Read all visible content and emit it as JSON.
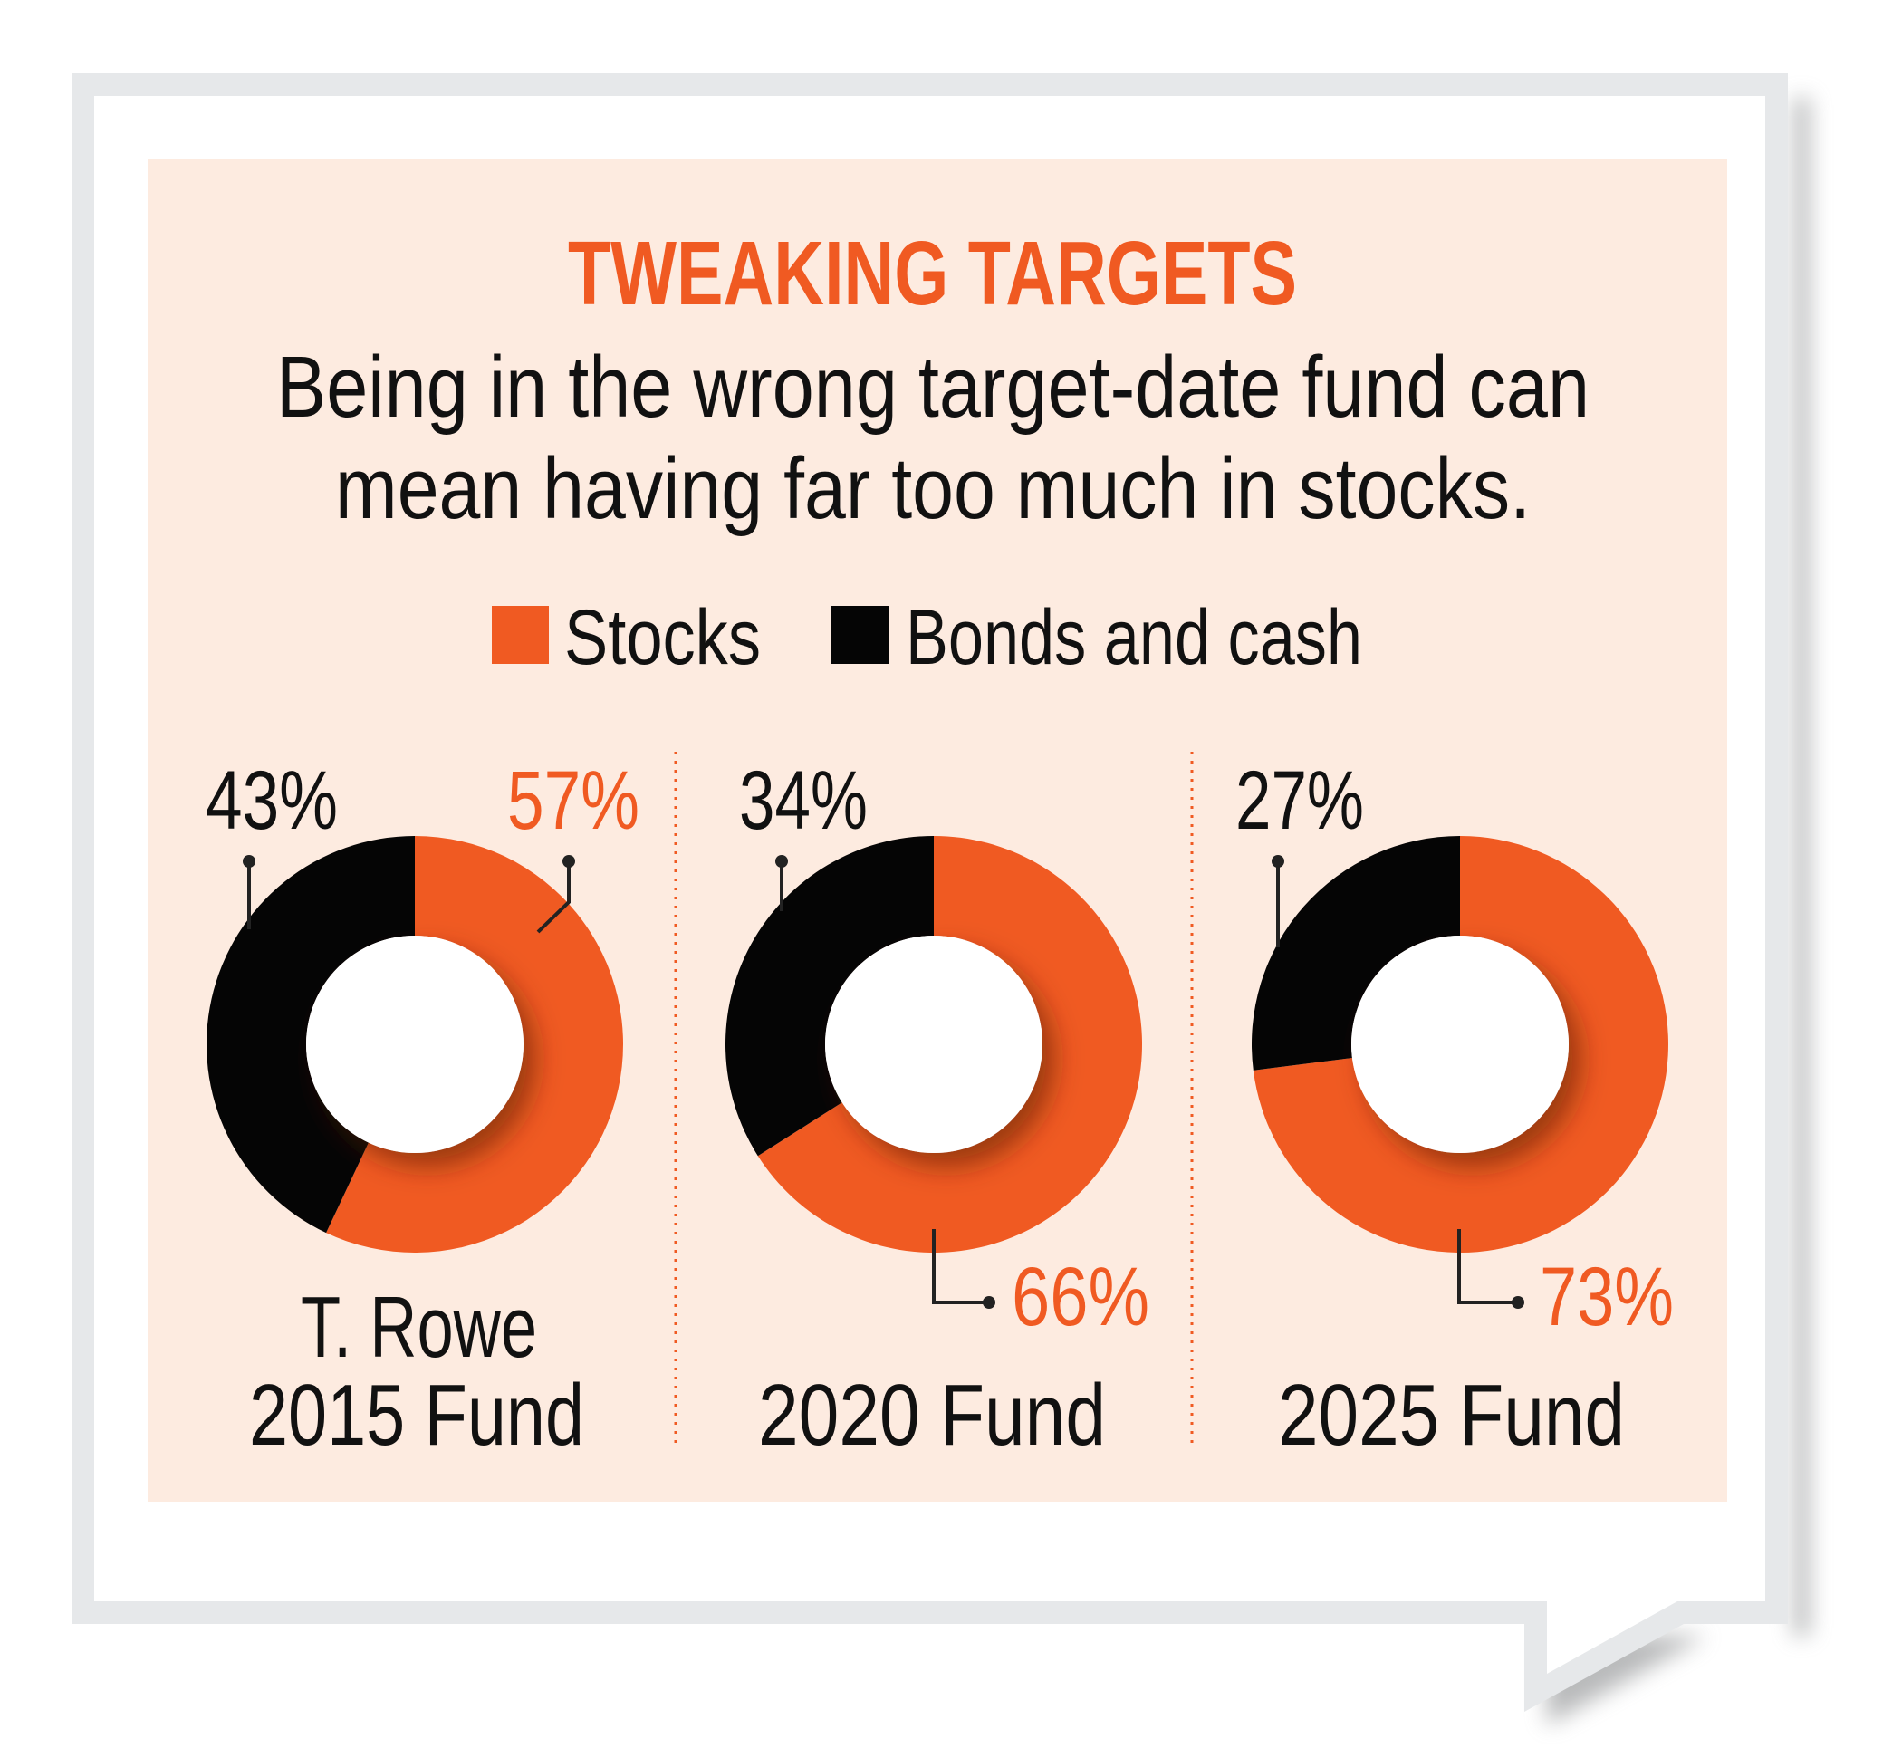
{
  "colors": {
    "stocks": "#f05a22",
    "bonds": "#050505",
    "panel": "#fdebe0",
    "frame": "#e6e8ea"
  },
  "title": "TWEAKING TARGETS",
  "subtitle": [
    "Being in the wrong target-date fund can",
    "mean having far too much in stocks."
  ],
  "chart_data": {
    "type": "pie",
    "variant": "donut",
    "title": "TWEAKING TARGETS",
    "legend": [
      "Stocks",
      "Bonds and cash"
    ],
    "legend_placement": "top",
    "charts": [
      {
        "name_lines": [
          "T. Rowe",
          "2015 Fund"
        ],
        "stocks": 57,
        "bonds": 43,
        "stocks_label": "57%",
        "bonds_label": "43%"
      },
      {
        "name_lines": [
          "2020 Fund"
        ],
        "stocks": 66,
        "bonds": 34,
        "stocks_label": "66%",
        "bonds_label": "34%"
      },
      {
        "name_lines": [
          "2025 Fund"
        ],
        "stocks": 73,
        "bonds": 27,
        "stocks_label": "73%",
        "bonds_label": "27%"
      }
    ]
  }
}
